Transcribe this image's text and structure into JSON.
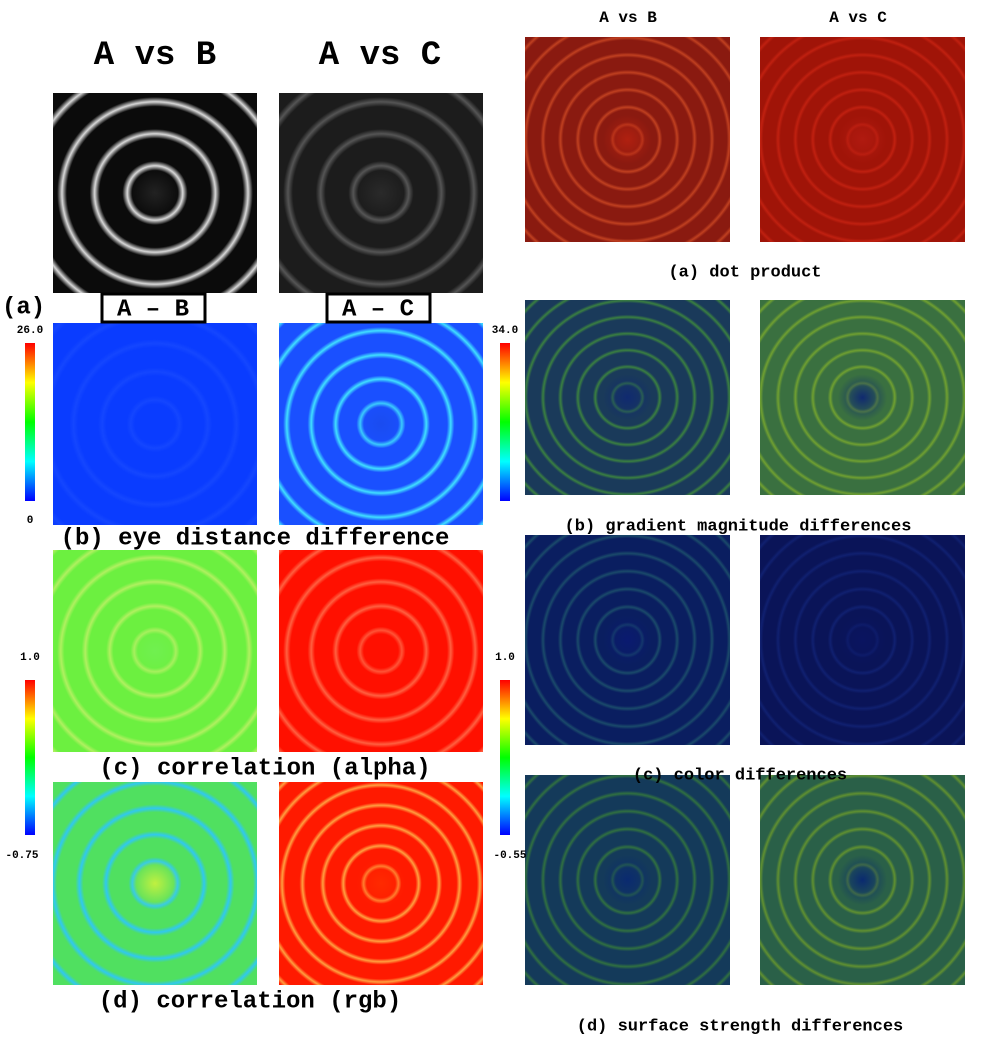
{
  "left": {
    "headers": [
      "A vs B",
      "A vs C"
    ],
    "row_a_label": "(a)",
    "diff_labels": [
      "A – B",
      "A – C"
    ],
    "colorbars": [
      {
        "max": "26.0",
        "min": "0"
      },
      {
        "max": "34.0"
      },
      {
        "max": "1.0",
        "min": "-0.75"
      },
      {
        "max": "1.0",
        "min": "-0.55"
      }
    ],
    "captions": [
      "(b) eye distance difference",
      "(c) correlation (alpha)",
      "(d) correlation (rgb)"
    ]
  },
  "right": {
    "headers": [
      "A vs B",
      "A vs C"
    ],
    "captions": [
      "(a) dot product",
      "(b) gradient magnitude differences",
      "(c) color differences",
      "(d) surface strength differences"
    ]
  }
}
